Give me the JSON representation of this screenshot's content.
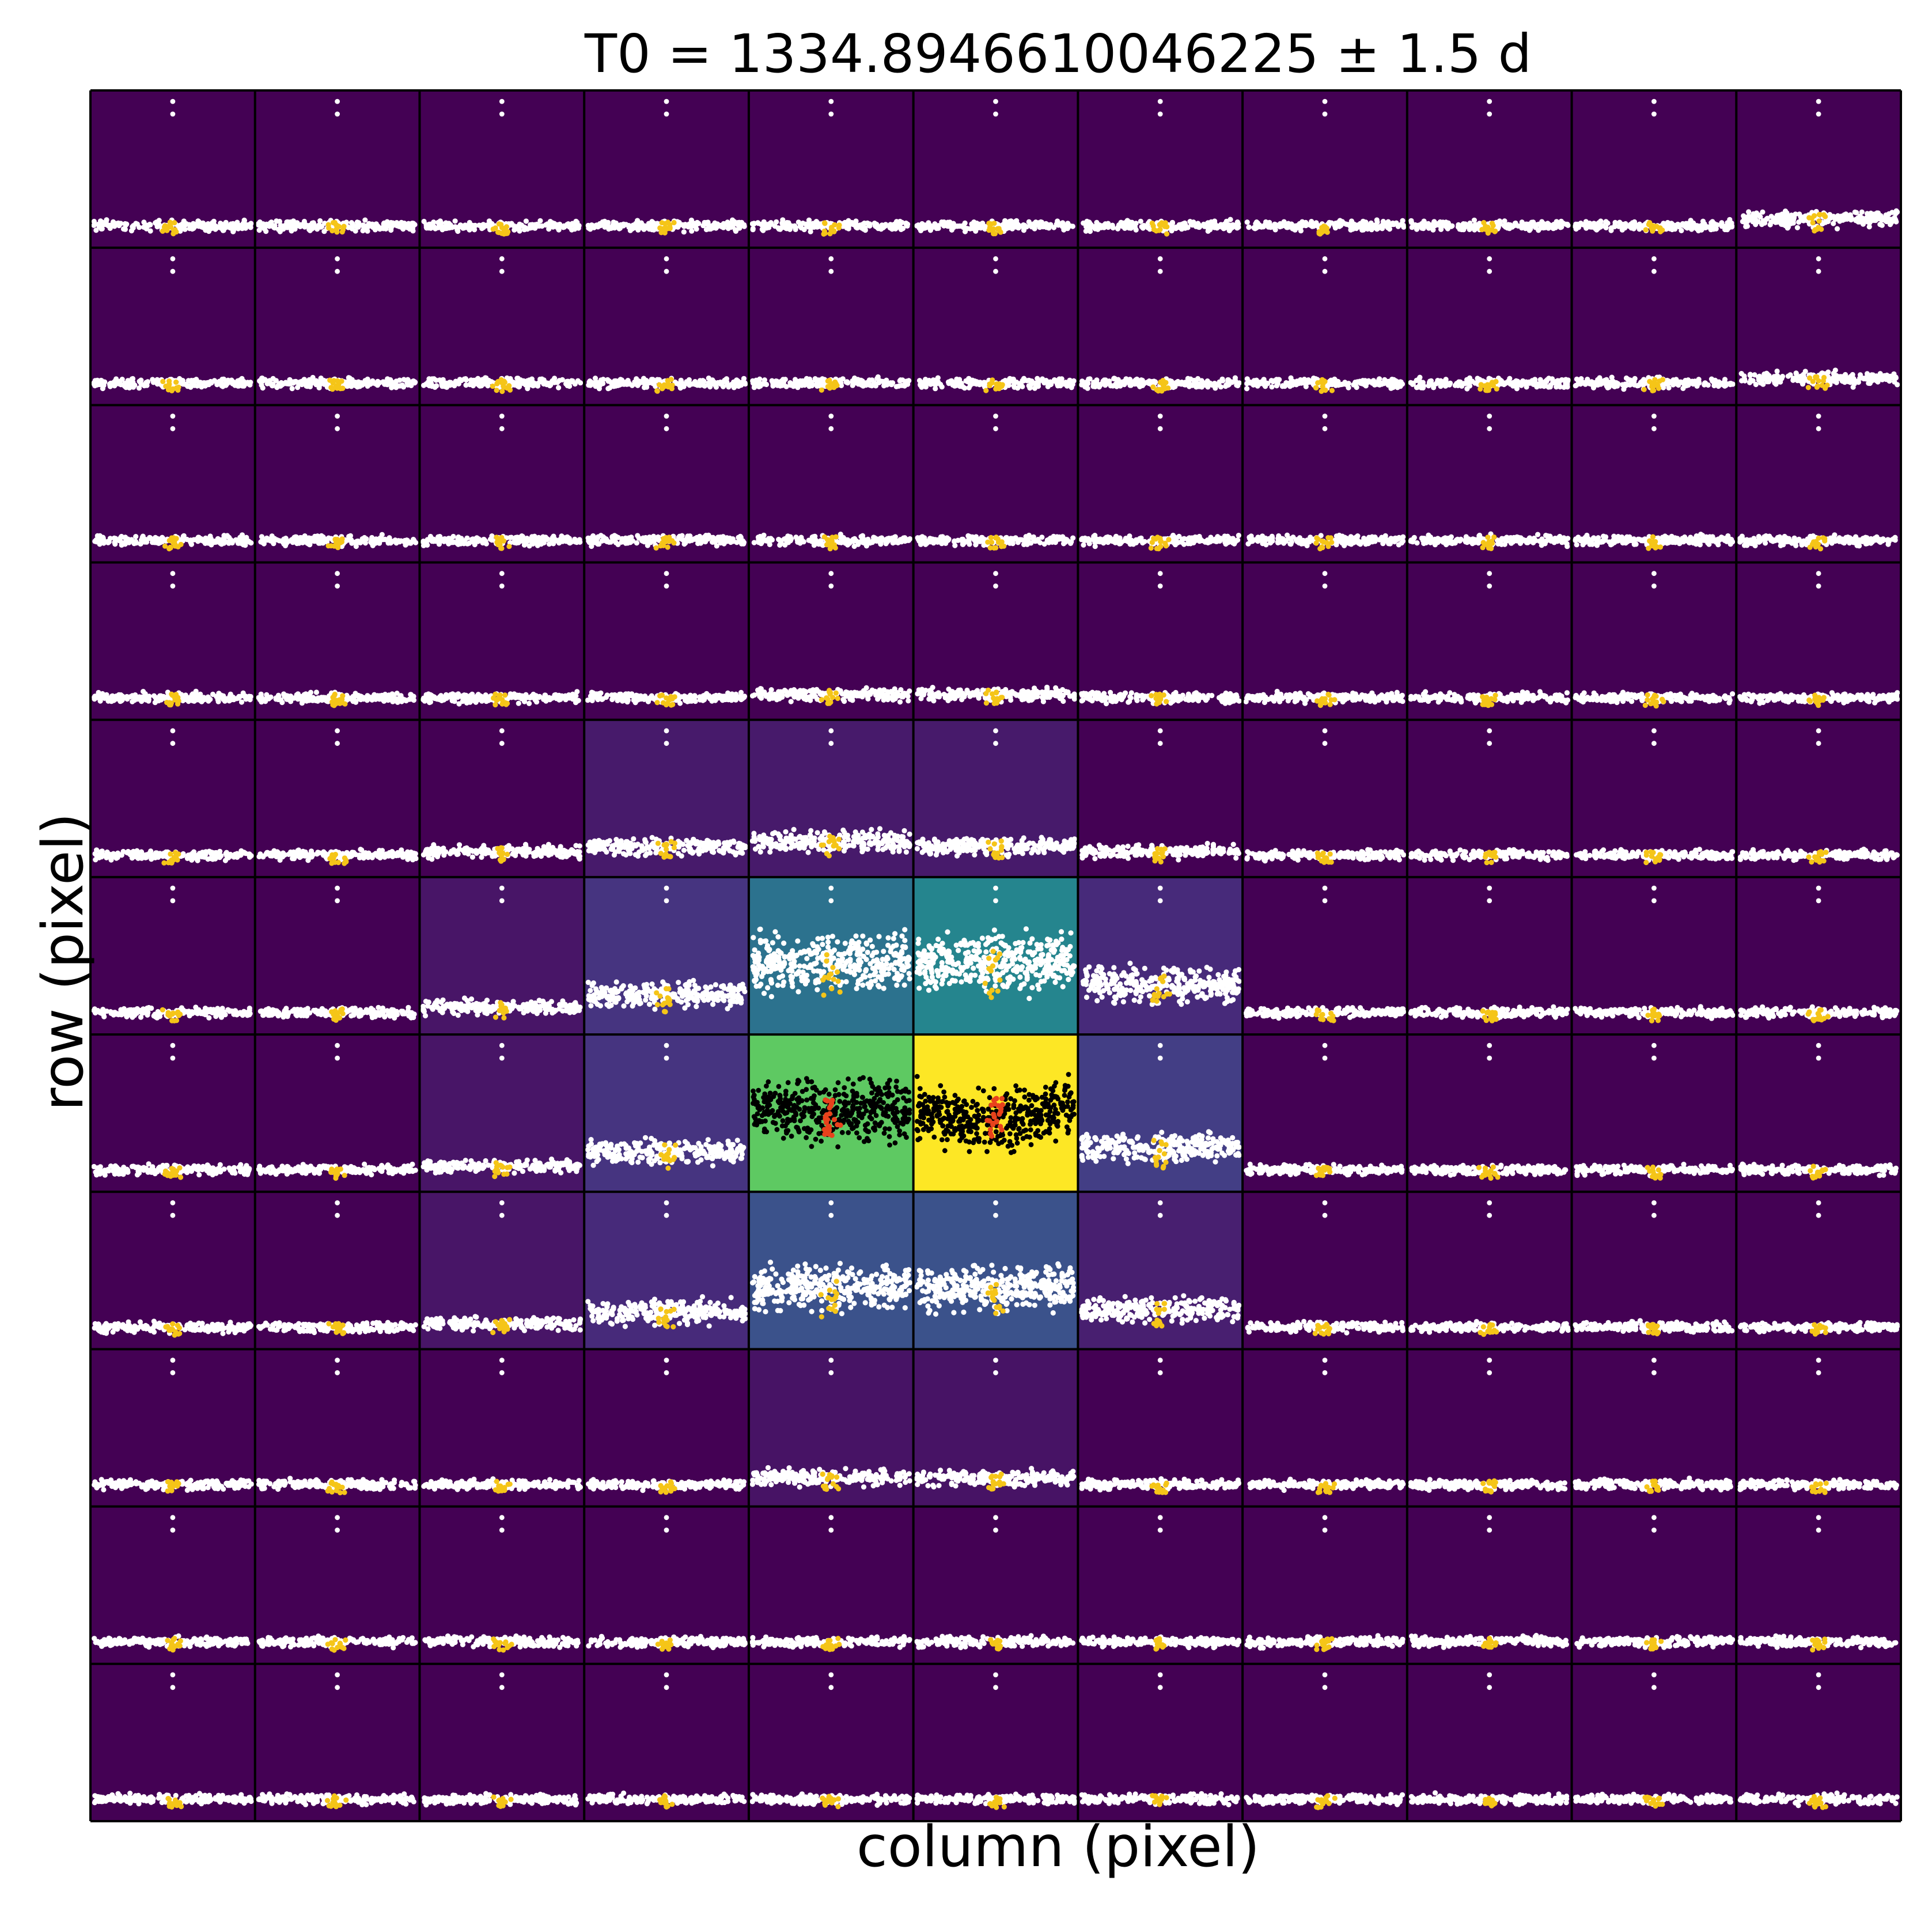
{
  "chart_data": {
    "type": "scatter",
    "title": "T0 = 1334.8946610046225 ± 1.5 d",
    "xlabel": "column (pixel)",
    "ylabel": "row (pixel)",
    "grid": {
      "rows": 11,
      "cols": 11
    },
    "colormap": "viridis",
    "pixel_colors": [
      [
        "#440154",
        "#440154",
        "#440154",
        "#440154",
        "#440154",
        "#440154",
        "#440154",
        "#440154",
        "#440154",
        "#440154",
        "#440154"
      ],
      [
        "#440154",
        "#440154",
        "#440154",
        "#440154",
        "#440154",
        "#440154",
        "#440154",
        "#440154",
        "#440154",
        "#440154",
        "#440154"
      ],
      [
        "#440154",
        "#440154",
        "#440154",
        "#440154",
        "#440154",
        "#440154",
        "#440154",
        "#440154",
        "#440154",
        "#440154",
        "#440154"
      ],
      [
        "#440154",
        "#440154",
        "#440154",
        "#440154",
        "#440154",
        "#440154",
        "#440154",
        "#440154",
        "#440154",
        "#440154",
        "#440154"
      ],
      [
        "#440154",
        "#440154",
        "#440154",
        "#471a6b",
        "#471a6b",
        "#471a6b",
        "#440154",
        "#440154",
        "#440154",
        "#440154",
        "#440154"
      ],
      [
        "#440154",
        "#440154",
        "#481567",
        "#463480",
        "#2c728e",
        "#25858e",
        "#472a7a",
        "#440154",
        "#440154",
        "#440154",
        "#440154"
      ],
      [
        "#440154",
        "#440154",
        "#481567",
        "#463480",
        "#5ec962",
        "#fde725",
        "#433e85",
        "#440154",
        "#440154",
        "#440154",
        "#440154"
      ],
      [
        "#440154",
        "#440154",
        "#481567",
        "#472a7a",
        "#3b528b",
        "#3b528b",
        "#481f70",
        "#440154",
        "#440154",
        "#440154",
        "#440154"
      ],
      [
        "#440154",
        "#440154",
        "#440154",
        "#440154",
        "#471365",
        "#471365",
        "#440154",
        "#440154",
        "#440154",
        "#440154",
        "#440154"
      ],
      [
        "#440154",
        "#440154",
        "#440154",
        "#440154",
        "#440154",
        "#440154",
        "#440154",
        "#440154",
        "#440154",
        "#440154",
        "#440154"
      ],
      [
        "#440154",
        "#440154",
        "#440154",
        "#440154",
        "#440154",
        "#440154",
        "#440154",
        "#440154",
        "#440154",
        "#440154",
        "#440154"
      ]
    ],
    "highlight_pixels": [
      [
        6,
        4
      ],
      [
        6,
        5
      ]
    ],
    "series": [
      {
        "name": "",
        "color": "#ffffff",
        "highlight_color": "#000000"
      },
      {
        "name": "",
        "color": "#f5c518",
        "highlight_color": "#e8421c"
      }
    ],
    "colors": {
      "background": "#ffffff",
      "grid_lines": "#000000"
    }
  }
}
